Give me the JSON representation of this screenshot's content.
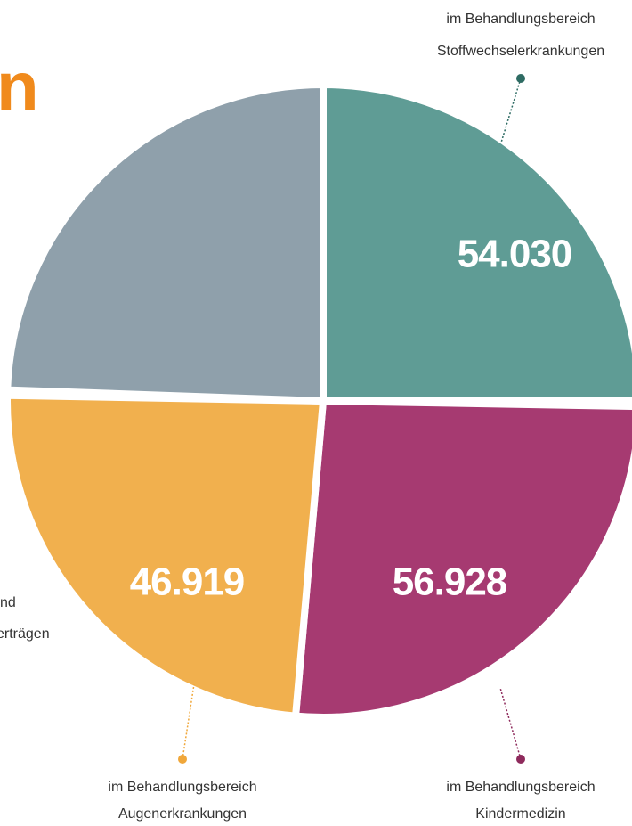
{
  "title_fragment": "n",
  "segments": [
    {
      "value": "54.030",
      "label_lines": [
        "im Behandlungsbereich",
        "Stoffwechselerkrankungen"
      ]
    },
    {
      "value": "56.928",
      "label_lines": [
        "im Behandlungsbereich",
        "Kindermedizin"
      ]
    },
    {
      "value": "46.919",
      "label_lines": [
        "im Behandlungsbereich",
        "Augenerkrankungen"
      ]
    }
  ],
  "left_note_lines": [
    "nd",
    "erträgen"
  ]
}
